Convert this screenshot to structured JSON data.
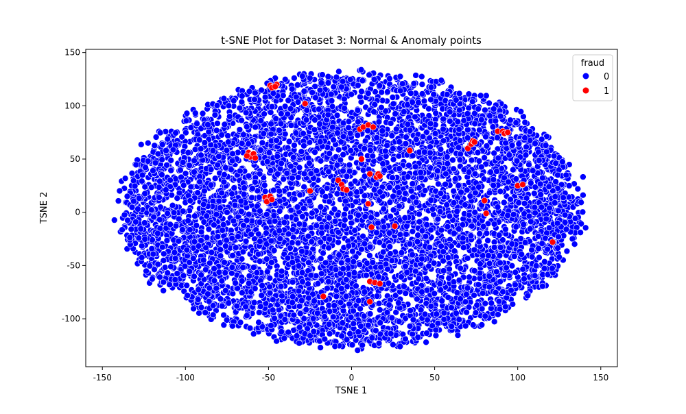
{
  "chart_data": {
    "type": "scatter",
    "title": "t-SNE Plot for Dataset 3: Normal & Anomaly points",
    "xlabel": "TSNE 1",
    "ylabel": "TSNE 2",
    "xlim": [
      -160,
      160
    ],
    "ylim": [
      -145,
      153
    ],
    "xticks": [
      -150,
      -100,
      -50,
      0,
      50,
      100,
      150
    ],
    "yticks": [
      -100,
      -50,
      0,
      50,
      100,
      150
    ],
    "grid": false,
    "legend": {
      "title": "fraud",
      "position": "top-right"
    },
    "series": [
      {
        "name": "0",
        "color": "#0000ff",
        "edgecolor": "#ffffff",
        "cloud": {
          "center": [
            0,
            2
          ],
          "radius_x": 144,
          "radius_y": 133,
          "count": 6500
        }
      },
      {
        "name": "1",
        "color": "#ff0000",
        "edgecolor": "#ffffff",
        "points": [
          [
            -49,
            119
          ],
          [
            -47,
            118
          ],
          [
            -45,
            120
          ],
          [
            -48,
            117
          ],
          [
            -46,
            118
          ],
          [
            -62,
            56
          ],
          [
            -60,
            54
          ],
          [
            -61,
            52
          ],
          [
            -59,
            55
          ],
          [
            -58,
            51
          ],
          [
            -63,
            53
          ],
          [
            -52,
            14
          ],
          [
            -50,
            12
          ],
          [
            -51,
            10
          ],
          [
            -49,
            15
          ],
          [
            -48,
            12
          ],
          [
            -28,
            102
          ],
          [
            -25,
            20
          ],
          [
            5,
            78
          ],
          [
            7,
            80
          ],
          [
            10,
            82
          ],
          [
            13,
            80
          ],
          [
            -8,
            30
          ],
          [
            -6,
            26
          ],
          [
            -5,
            22
          ],
          [
            -3,
            21
          ],
          [
            6,
            50
          ],
          [
            11,
            36
          ],
          [
            15,
            33
          ],
          [
            16,
            36
          ],
          [
            17,
            34
          ],
          [
            10,
            8
          ],
          [
            12,
            -14
          ],
          [
            26,
            -13
          ],
          [
            35,
            58
          ],
          [
            70,
            60
          ],
          [
            72,
            64
          ],
          [
            73,
            67
          ],
          [
            74,
            66
          ],
          [
            88,
            76
          ],
          [
            91,
            76
          ],
          [
            92,
            74
          ],
          [
            94,
            75
          ],
          [
            80,
            11
          ],
          [
            81,
            -1
          ],
          [
            100,
            25
          ],
          [
            103,
            26
          ],
          [
            121,
            -28
          ],
          [
            11,
            -65
          ],
          [
            14,
            -66
          ],
          [
            17,
            -67
          ],
          [
            11,
            -84
          ],
          [
            -17,
            -79
          ]
        ]
      }
    ]
  }
}
